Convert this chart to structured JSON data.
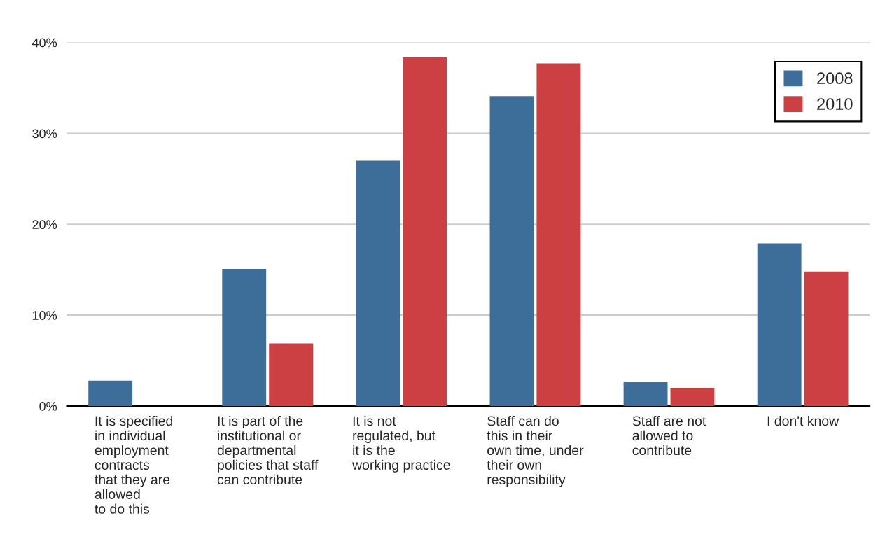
{
  "chart_data": {
    "type": "bar",
    "categories": [
      "It is specified\nin individual\nemployment\ncontracts\nthat they are\nallowed\nto do this",
      "It is part of the\ninstitutional or\ndepartmental\npolicies that staff\ncan contribute",
      "It is not\nregulated, but\nit is the\nworking practice",
      "Staff can do\nthis in their\nown time, under\ntheir own\nresponsibility",
      "Staff are not\nallowed to\ncontribute",
      "I don't know"
    ],
    "series": [
      {
        "name": "2008",
        "color": "#3d6d99",
        "values": [
          2.8,
          15.1,
          27.0,
          34.1,
          2.7,
          17.9
        ]
      },
      {
        "name": "2010",
        "color": "#cc3f42",
        "values": [
          0,
          6.9,
          38.4,
          37.7,
          2.0,
          14.8
        ]
      }
    ],
    "ylim": [
      0,
      40
    ],
    "yticks": [
      {
        "value": 0,
        "label": "0%"
      },
      {
        "value": 10,
        "label": "10%"
      },
      {
        "value": 20,
        "label": "20%"
      },
      {
        "value": 30,
        "label": "30%"
      },
      {
        "value": 40,
        "label": "40%"
      }
    ],
    "grid": "y",
    "legend": "top right"
  }
}
